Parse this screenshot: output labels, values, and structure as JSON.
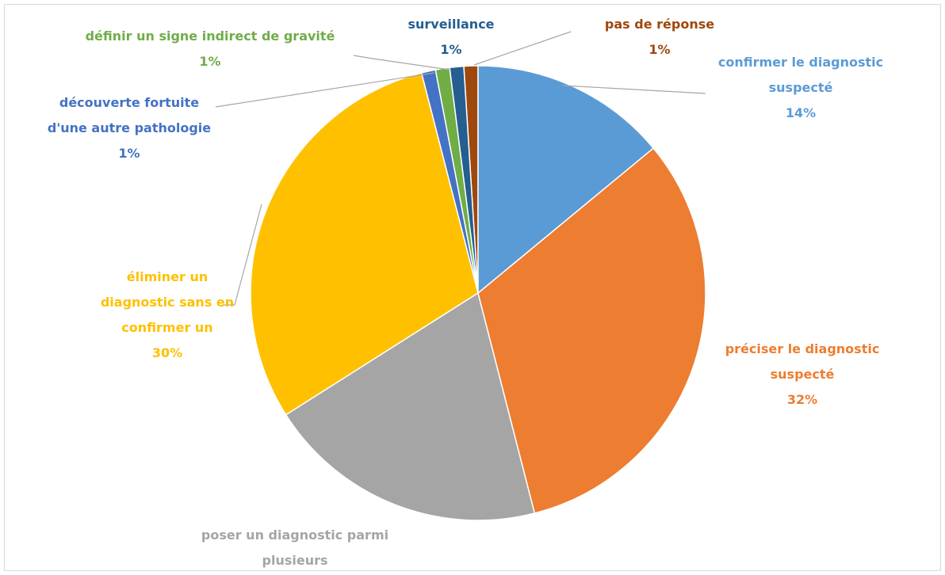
{
  "chart_data": {
    "type": "pie",
    "categories": [
      "confirmer le diagnostic suspecté",
      "préciser le diagnostic suspecté",
      "poser un diagnostic parmi plusieurs",
      "éliminer un diagnostic sans en confirmer un",
      "découverte fortuite d'une autre pathologie",
      "définir un signe indirect de gravité",
      "surveillance",
      "pas de réponse"
    ],
    "values": [
      14,
      32,
      20,
      30,
      1,
      1,
      1,
      1
    ],
    "value_labels": [
      "14%",
      "32%",
      "20%",
      "30%",
      "1%",
      "1%",
      "1%",
      "1%"
    ],
    "colors": [
      "#5b9bd5",
      "#ed7d31",
      "#a5a5a5",
      "#ffc000",
      "#4472c4",
      "#70ad47",
      "#255e91",
      "#9e480e"
    ]
  }
}
